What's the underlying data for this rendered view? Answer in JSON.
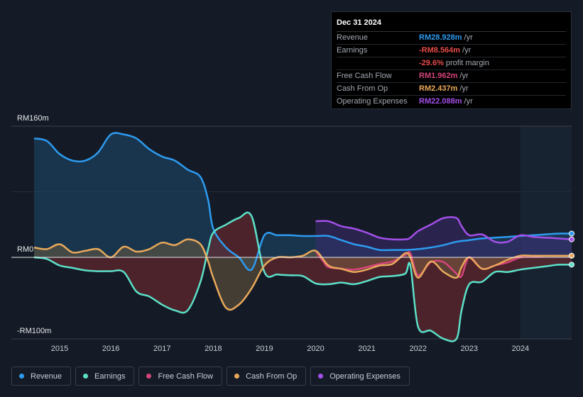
{
  "tooltip": {
    "date": "Dec 31 2024",
    "rows": [
      {
        "label": "Revenue",
        "value": "RM28.928m",
        "unit": "/yr",
        "color": "#2d9bf0"
      },
      {
        "label": "Earnings",
        "value": "-RM8.564m",
        "unit": "/yr",
        "color": "#e84a4a"
      },
      {
        "label": "",
        "value": "-29.6%",
        "unit": "profit margin",
        "color": "#e84a4a"
      },
      {
        "label": "Free Cash Flow",
        "value": "RM1.962m",
        "unit": "/yr",
        "color": "#d6457c"
      },
      {
        "label": "Cash From Op",
        "value": "RM2.437m",
        "unit": "/yr",
        "color": "#e8a85a"
      },
      {
        "label": "Operating Expenses",
        "value": "RM22.088m",
        "unit": "/yr",
        "color": "#a34fe8"
      }
    ]
  },
  "legend": [
    {
      "label": "Revenue",
      "color": "#2d9bf0"
    },
    {
      "label": "Earnings",
      "color": "#5ce0c8"
    },
    {
      "label": "Free Cash Flow",
      "color": "#d6457c"
    },
    {
      "label": "Cash From Op",
      "color": "#e8a85a"
    },
    {
      "label": "Operating Expenses",
      "color": "#a34fe8"
    }
  ],
  "chart_data": {
    "type": "area",
    "ylabels": [
      "RM160m",
      "RM0",
      "-RM100m"
    ],
    "ylim": [
      -100,
      160
    ],
    "xlim": [
      2014.5,
      2025.0
    ],
    "forecast_start": 2024.0,
    "xticks": [
      2015,
      2016,
      2017,
      2018,
      2019,
      2020,
      2021,
      2022,
      2023,
      2024
    ],
    "xtick_labels": [
      "2015",
      "2016",
      "2017",
      "2018",
      "2019",
      "2020",
      "2021",
      "2022",
      "2023",
      "2024"
    ],
    "series": [
      {
        "name": "Revenue",
        "color": "#2d9bf0",
        "fill": "#1b4a6e",
        "x": [
          2014.5,
          2014.75,
          2015.0,
          2015.25,
          2015.5,
          2015.75,
          2016.0,
          2016.25,
          2016.5,
          2016.75,
          2017.0,
          2017.25,
          2017.5,
          2017.75,
          2017.9,
          2018.0,
          2018.25,
          2018.5,
          2018.75,
          2019.0,
          2019.25,
          2019.5,
          2019.75,
          2020.0,
          2020.25,
          2020.5,
          2020.75,
          2021.0,
          2021.25,
          2021.5,
          2021.75,
          2022.0,
          2022.25,
          2022.5,
          2022.75,
          2023.0,
          2023.25,
          2023.5,
          2023.75,
          2024.0,
          2024.25,
          2024.5,
          2024.75,
          2025.0
        ],
        "values": [
          145,
          142,
          126,
          118,
          118,
          128,
          150,
          150,
          145,
          132,
          123,
          118,
          107,
          98,
          70,
          35,
          12,
          0,
          -15,
          27,
          27,
          27,
          26,
          26,
          26,
          21,
          16,
          13,
          9,
          9,
          9,
          10,
          12,
          15,
          19,
          21,
          23,
          24,
          25,
          26,
          27,
          28,
          29,
          29
        ]
      },
      {
        "name": "Earnings",
        "color": "#5ce0c8",
        "fill": "#7a2a30",
        "x": [
          2014.5,
          2014.75,
          2015.0,
          2015.25,
          2015.5,
          2015.75,
          2016.0,
          2016.25,
          2016.5,
          2016.75,
          2017.0,
          2017.25,
          2017.5,
          2017.75,
          2017.9,
          2018.0,
          2018.25,
          2018.5,
          2018.75,
          2019.0,
          2019.25,
          2019.5,
          2019.75,
          2020.0,
          2020.25,
          2020.5,
          2020.75,
          2021.0,
          2021.25,
          2021.5,
          2021.75,
          2021.85,
          2022.0,
          2022.25,
          2022.5,
          2022.75,
          2022.85,
          2023.0,
          2023.25,
          2023.5,
          2023.75,
          2024.0,
          2024.25,
          2024.5,
          2024.75,
          2025.0
        ],
        "values": [
          0,
          -2,
          -10,
          -13,
          -16,
          -17,
          -17,
          -18,
          -42,
          -48,
          -58,
          -65,
          -65,
          -30,
          10,
          30,
          40,
          48,
          50,
          -18,
          -21,
          -22,
          -23,
          -32,
          -33,
          -31,
          -33,
          -29,
          -24,
          -23,
          -20,
          -10,
          -85,
          -90,
          -100,
          -100,
          -65,
          -33,
          -30,
          -18,
          -18,
          -15,
          -13,
          -11,
          -9,
          -9
        ]
      },
      {
        "name": "Free Cash Flow",
        "color": "#d6457c",
        "fill": "#7a2a30",
        "x": [
          2020.0,
          2020.15,
          2020.25,
          2020.5,
          2020.75,
          2021.0,
          2021.25,
          2021.5,
          2021.75,
          2021.85,
          2022.0,
          2022.25,
          2022.5,
          2022.75,
          2022.85,
          2023.0,
          2023.25,
          2023.5,
          2023.75,
          2024.0,
          2024.25,
          2024.5,
          2024.75,
          2025.0
        ],
        "values": [
          8,
          -5,
          -12,
          -14,
          -15,
          -12,
          -8,
          -5,
          3,
          5,
          -22,
          -6,
          -6,
          -20,
          -23,
          0,
          -14,
          -10,
          -6,
          0,
          1,
          2,
          2,
          2
        ]
      },
      {
        "name": "Cash From Op",
        "color": "#e8a85a",
        "fill": "#6a5a40",
        "x": [
          2014.5,
          2014.75,
          2015.0,
          2015.25,
          2015.5,
          2015.75,
          2016.0,
          2016.25,
          2016.5,
          2016.75,
          2017.0,
          2017.25,
          2017.5,
          2017.75,
          2017.9,
          2018.0,
          2018.25,
          2018.5,
          2018.75,
          2019.0,
          2019.25,
          2019.5,
          2019.75,
          2020.0,
          2020.25,
          2020.5,
          2020.75,
          2021.0,
          2021.25,
          2021.5,
          2021.75,
          2021.85,
          2022.0,
          2022.25,
          2022.5,
          2022.75,
          2022.85,
          2023.0,
          2023.25,
          2023.5,
          2023.75,
          2024.0,
          2024.25,
          2024.5,
          2024.75,
          2025.0
        ],
        "values": [
          12,
          10,
          16,
          6,
          8,
          10,
          0,
          13,
          7,
          10,
          18,
          15,
          22,
          16,
          -5,
          -25,
          -62,
          -58,
          -38,
          -10,
          0,
          0,
          2,
          8,
          -10,
          -14,
          -18,
          -15,
          -10,
          -8,
          5,
          0,
          -25,
          -5,
          -18,
          -25,
          -12,
          0,
          -14,
          -10,
          -3,
          2,
          2,
          2,
          2,
          2
        ]
      },
      {
        "name": "Operating Expenses",
        "color": "#a34fe8",
        "fill": "#3c2a70",
        "x": [
          2020.0,
          2020.25,
          2020.5,
          2020.75,
          2021.0,
          2021.25,
          2021.5,
          2021.75,
          2021.85,
          2022.0,
          2022.25,
          2022.5,
          2022.75,
          2022.85,
          2023.0,
          2023.25,
          2023.5,
          2023.75,
          2024.0,
          2024.25,
          2024.5,
          2024.75,
          2025.0
        ],
        "values": [
          44,
          44,
          38,
          35,
          30,
          24,
          22,
          22,
          24,
          32,
          40,
          48,
          48,
          38,
          27,
          28,
          19,
          19,
          27,
          25,
          24,
          23,
          22
        ]
      }
    ]
  }
}
